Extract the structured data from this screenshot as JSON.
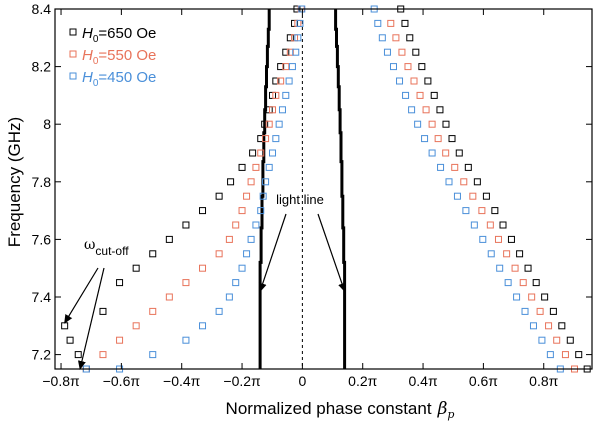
{
  "chart_data": {
    "type": "scatter",
    "title": "",
    "xlabel": "Normalized phase constant",
    "xlabel_symbol": "β",
    "xlabel_subscript": "p",
    "ylabel": "Frequency (GHz)",
    "xlim": [
      -0.82,
      0.96
    ],
    "ylim": [
      7.15,
      8.4
    ],
    "x_ticks": [
      -0.8,
      -0.6,
      -0.4,
      -0.2,
      0,
      0.2,
      0.4,
      0.6,
      0.8
    ],
    "x_tick_labels": [
      "−0.8π",
      "−0.6π",
      "−0.4π",
      "−0.2π",
      "0",
      "0.2π",
      "0.4π",
      "0.6π",
      "0.8π"
    ],
    "y_ticks": [
      7.2,
      7.4,
      7.6,
      7.8,
      8.0,
      8.2,
      8.4
    ],
    "y_tick_labels": [
      "7.2",
      "7.4",
      "7.6",
      "7.8",
      "8",
      "8.2",
      "8.4"
    ],
    "legend": {
      "position": "top-left",
      "entries": [
        {
          "var": "H",
          "sub": "0",
          "rest": "=650 Oe",
          "color": "#000000"
        },
        {
          "var": "H",
          "sub": "0",
          "rest": "=550 Oe",
          "color": "#e8735a"
        },
        {
          "var": "H",
          "sub": "0",
          "rest": "=450 Oe",
          "color": "#4a8fd9"
        }
      ]
    },
    "series": [
      {
        "name": "H0=650 Oe",
        "color": "#000000",
        "points_negative": [
          [
            -0.788,
            7.3
          ],
          [
            -0.77,
            7.25
          ],
          [
            -0.743,
            7.2
          ],
          [
            -0.716,
            7.15
          ],
          [
            -0.661,
            7.35
          ],
          [
            -0.606,
            7.45
          ],
          [
            -0.551,
            7.5
          ],
          [
            -0.496,
            7.55
          ],
          [
            -0.441,
            7.6
          ],
          [
            -0.386,
            7.65
          ],
          [
            -0.331,
            7.7
          ],
          [
            -0.276,
            7.75
          ],
          [
            -0.238,
            7.8
          ],
          [
            -0.2,
            7.85
          ],
          [
            -0.165,
            7.9
          ],
          [
            -0.138,
            7.95
          ],
          [
            -0.125,
            8.0
          ],
          [
            -0.11,
            8.05
          ],
          [
            -0.099,
            8.1
          ],
          [
            -0.088,
            8.15
          ],
          [
            -0.072,
            8.2
          ],
          [
            -0.055,
            8.25
          ],
          [
            -0.04,
            8.3
          ],
          [
            -0.026,
            8.35
          ],
          [
            -0.018,
            8.4
          ]
        ],
        "points_positive": [
          [
            0.326,
            8.4
          ],
          [
            0.34,
            8.35
          ],
          [
            0.356,
            8.3
          ],
          [
            0.376,
            8.25
          ],
          [
            0.396,
            8.2
          ],
          [
            0.416,
            8.15
          ],
          [
            0.437,
            8.1
          ],
          [
            0.456,
            8.05
          ],
          [
            0.476,
            8.0
          ],
          [
            0.496,
            7.95
          ],
          [
            0.52,
            7.9
          ],
          [
            0.55,
            7.85
          ],
          [
            0.58,
            7.8
          ],
          [
            0.61,
            7.75
          ],
          [
            0.638,
            7.7
          ],
          [
            0.665,
            7.65
          ],
          [
            0.693,
            7.6
          ],
          [
            0.72,
            7.55
          ],
          [
            0.748,
            7.5
          ],
          [
            0.775,
            7.45
          ],
          [
            0.803,
            7.4
          ],
          [
            0.832,
            7.35
          ],
          [
            0.86,
            7.3
          ],
          [
            0.888,
            7.25
          ],
          [
            0.916,
            7.2
          ],
          [
            0.944,
            7.15
          ]
        ]
      },
      {
        "name": "H0=550 Oe",
        "color": "#e8735a",
        "points_negative": [
          [
            -0.716,
            7.15
          ],
          [
            -0.661,
            7.2
          ],
          [
            -0.606,
            7.25
          ],
          [
            -0.551,
            7.3
          ],
          [
            -0.496,
            7.35
          ],
          [
            -0.441,
            7.4
          ],
          [
            -0.386,
            7.45
          ],
          [
            -0.331,
            7.5
          ],
          [
            -0.276,
            7.55
          ],
          [
            -0.242,
            7.6
          ],
          [
            -0.221,
            7.65
          ],
          [
            -0.2,
            7.7
          ],
          [
            -0.185,
            7.75
          ],
          [
            -0.17,
            7.8
          ],
          [
            -0.154,
            7.85
          ],
          [
            -0.138,
            7.9
          ],
          [
            -0.122,
            7.95
          ],
          [
            -0.11,
            8.0
          ],
          [
            -0.099,
            8.05
          ],
          [
            -0.088,
            8.1
          ],
          [
            -0.072,
            8.15
          ],
          [
            -0.055,
            8.2
          ],
          [
            -0.04,
            8.25
          ],
          [
            -0.026,
            8.3
          ],
          [
            -0.015,
            8.35
          ],
          [
            -0.004,
            8.4
          ]
        ],
        "points_positive": [
          [
            0.293,
            8.35
          ],
          [
            0.31,
            8.3
          ],
          [
            0.33,
            8.25
          ],
          [
            0.35,
            8.2
          ],
          [
            0.37,
            8.15
          ],
          [
            0.39,
            8.1
          ],
          [
            0.41,
            8.05
          ],
          [
            0.43,
            8.0
          ],
          [
            0.45,
            7.95
          ],
          [
            0.475,
            7.9
          ],
          [
            0.505,
            7.85
          ],
          [
            0.535,
            7.8
          ],
          [
            0.565,
            7.75
          ],
          [
            0.595,
            7.7
          ],
          [
            0.623,
            7.65
          ],
          [
            0.65,
            7.6
          ],
          [
            0.677,
            7.55
          ],
          [
            0.705,
            7.5
          ],
          [
            0.732,
            7.45
          ],
          [
            0.76,
            7.4
          ],
          [
            0.788,
            7.35
          ],
          [
            0.816,
            7.3
          ],
          [
            0.843,
            7.25
          ],
          [
            0.872,
            7.2
          ],
          [
            0.902,
            7.15
          ]
        ]
      },
      {
        "name": "H0=450 Oe",
        "color": "#4a8fd9",
        "points_negative": [
          [
            -0.716,
            7.15
          ],
          [
            -0.606,
            7.15
          ],
          [
            -0.496,
            7.2
          ],
          [
            -0.386,
            7.25
          ],
          [
            -0.331,
            7.3
          ],
          [
            -0.276,
            7.35
          ],
          [
            -0.242,
            7.4
          ],
          [
            -0.221,
            7.45
          ],
          [
            -0.2,
            7.5
          ],
          [
            -0.185,
            7.55
          ],
          [
            -0.17,
            7.6
          ],
          [
            -0.154,
            7.65
          ],
          [
            -0.138,
            7.7
          ],
          [
            -0.13,
            7.75
          ],
          [
            -0.122,
            7.8
          ],
          [
            -0.11,
            7.85
          ],
          [
            -0.099,
            7.9
          ],
          [
            -0.088,
            7.95
          ],
          [
            -0.077,
            8.0
          ],
          [
            -0.066,
            8.05
          ],
          [
            -0.055,
            8.1
          ],
          [
            -0.044,
            8.15
          ],
          [
            -0.033,
            8.2
          ],
          [
            -0.022,
            8.25
          ],
          [
            -0.015,
            8.3
          ],
          [
            -0.008,
            8.35
          ],
          [
            -0.002,
            8.4
          ]
        ],
        "points_positive": [
          [
            0.238,
            8.4
          ],
          [
            0.25,
            8.35
          ],
          [
            0.265,
            8.3
          ],
          [
            0.282,
            8.25
          ],
          [
            0.302,
            8.2
          ],
          [
            0.322,
            8.15
          ],
          [
            0.342,
            8.1
          ],
          [
            0.362,
            8.05
          ],
          [
            0.382,
            8.0
          ],
          [
            0.405,
            7.95
          ],
          [
            0.43,
            7.9
          ],
          [
            0.458,
            7.85
          ],
          [
            0.486,
            7.8
          ],
          [
            0.514,
            7.75
          ],
          [
            0.542,
            7.7
          ],
          [
            0.57,
            7.65
          ],
          [
            0.598,
            7.6
          ],
          [
            0.626,
            7.55
          ],
          [
            0.654,
            7.5
          ],
          [
            0.682,
            7.45
          ],
          [
            0.71,
            7.4
          ],
          [
            0.738,
            7.35
          ],
          [
            0.766,
            7.3
          ],
          [
            0.794,
            7.25
          ],
          [
            0.822,
            7.2
          ],
          [
            0.855,
            7.15
          ]
        ]
      }
    ],
    "light_lines": [
      {
        "name": "light line left",
        "points": [
          [
            -0.11,
            8.4
          ],
          [
            -0.11,
            8.33
          ],
          [
            -0.113,
            8.33
          ],
          [
            -0.113,
            8.27
          ],
          [
            -0.116,
            8.27
          ],
          [
            -0.116,
            8.2
          ],
          [
            -0.119,
            8.2
          ],
          [
            -0.119,
            8.13
          ],
          [
            -0.122,
            8.13
          ],
          [
            -0.122,
            8.05
          ],
          [
            -0.125,
            8.05
          ],
          [
            -0.125,
            7.97
          ],
          [
            -0.128,
            7.97
          ],
          [
            -0.128,
            7.87
          ],
          [
            -0.131,
            7.87
          ],
          [
            -0.131,
            7.75
          ],
          [
            -0.134,
            7.75
          ],
          [
            -0.134,
            7.64
          ],
          [
            -0.137,
            7.64
          ],
          [
            -0.137,
            7.52
          ],
          [
            -0.14,
            7.52
          ],
          [
            -0.14,
            7.15
          ]
        ]
      },
      {
        "name": "light line right",
        "points": [
          [
            0.11,
            8.4
          ],
          [
            0.11,
            8.33
          ],
          [
            0.113,
            8.33
          ],
          [
            0.113,
            8.27
          ],
          [
            0.116,
            8.27
          ],
          [
            0.116,
            8.2
          ],
          [
            0.119,
            8.2
          ],
          [
            0.119,
            8.13
          ],
          [
            0.122,
            8.13
          ],
          [
            0.122,
            8.05
          ],
          [
            0.125,
            8.05
          ],
          [
            0.125,
            7.97
          ],
          [
            0.128,
            7.97
          ],
          [
            0.128,
            7.87
          ],
          [
            0.131,
            7.87
          ],
          [
            0.131,
            7.75
          ],
          [
            0.134,
            7.75
          ],
          [
            0.134,
            7.64
          ],
          [
            0.137,
            7.64
          ],
          [
            0.137,
            7.52
          ],
          [
            0.14,
            7.52
          ],
          [
            0.14,
            7.15
          ]
        ]
      }
    ],
    "zero_line": {
      "x": 0,
      "style": "dashed"
    },
    "annotations": [
      {
        "id": "light-line",
        "text": "light line",
        "arrows_to": [
          [
            -0.14,
            7.42
          ],
          [
            0.14,
            7.42
          ]
        ]
      },
      {
        "id": "cutoff",
        "symbol": "ω",
        "sub": "cut-off",
        "arrows_to": [
          [
            -0.788,
            7.31
          ],
          [
            -0.737,
            7.15
          ]
        ]
      }
    ]
  }
}
